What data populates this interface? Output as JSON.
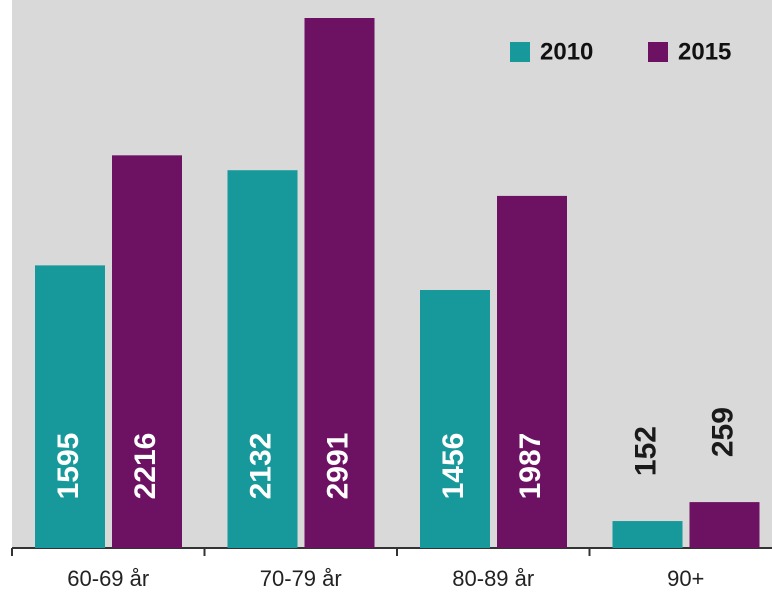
{
  "chart_data": {
    "type": "bar",
    "categories": [
      "60-69 år",
      "70-79 år",
      "80-89 år",
      "90+"
    ],
    "series": [
      {
        "name": "2010",
        "color": "#17989a",
        "values": [
          1595,
          2132,
          1456,
          152
        ]
      },
      {
        "name": "2015",
        "color": "#6d1162",
        "values": [
          2216,
          2991,
          1987,
          259
        ]
      }
    ],
    "legend": "top-right"
  }
}
